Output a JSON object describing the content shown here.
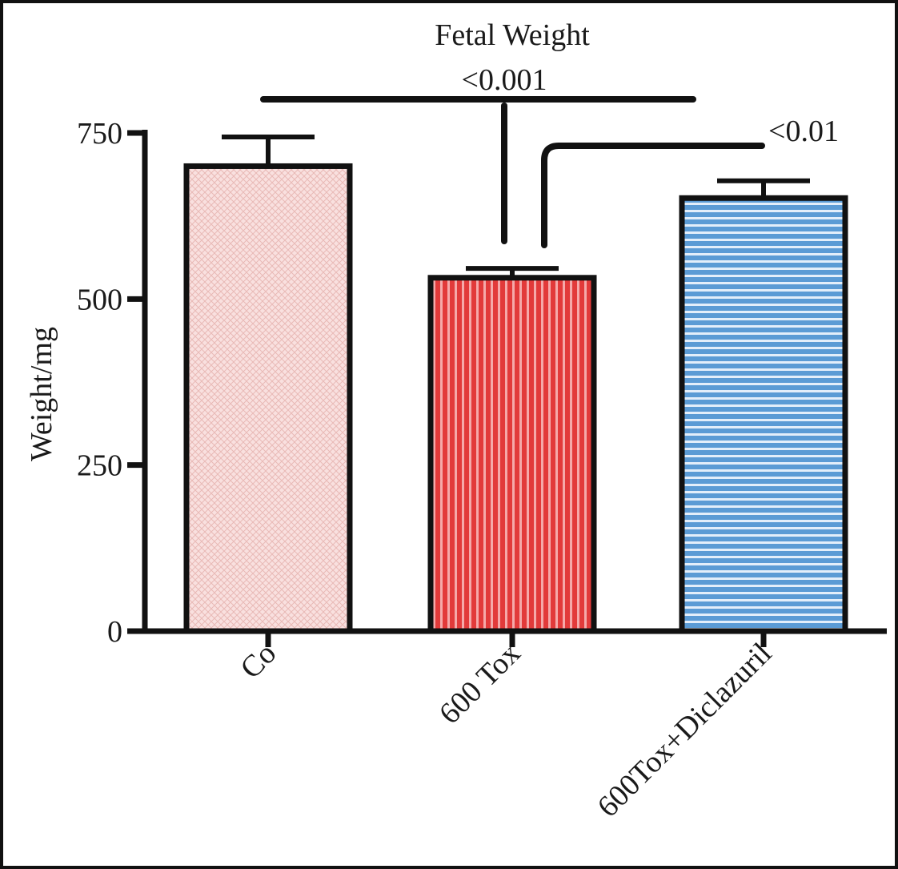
{
  "chart_data": {
    "type": "bar",
    "title": "Fetal Weight",
    "ylabel": "Weight/mg",
    "xlabel": "",
    "categories": [
      "Co",
      "600 Tox",
      "600Tox+Diclazuril"
    ],
    "values": [
      700,
      532,
      652
    ],
    "errors": [
      44,
      14,
      26
    ],
    "ylim": [
      0,
      750
    ],
    "yticks": [
      0,
      250,
      500,
      750
    ],
    "ytick_labels": [
      "0",
      "250",
      "500",
      "750"
    ],
    "grid": false,
    "legend": "none",
    "bar_styles": [
      {
        "fill": "#f9e0df",
        "pattern": "crosshatch",
        "pattern_color": "#e9b9b6"
      },
      {
        "fill": "#e23a3a",
        "pattern": "vertical-stripes",
        "pattern_color": "#f5a9a9"
      },
      {
        "fill": "#5b9bd5",
        "pattern": "horizontal-stripes",
        "pattern_color": "#e3eefa"
      }
    ],
    "annotations": [
      {
        "label": "<0.001",
        "from": 0,
        "to": 2
      },
      {
        "label": "<0.01",
        "from": 1,
        "to": 2
      }
    ]
  }
}
